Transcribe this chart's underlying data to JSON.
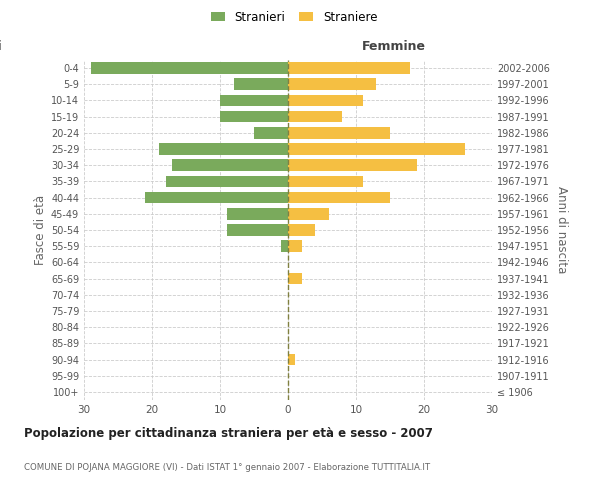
{
  "age_groups": [
    "100+",
    "95-99",
    "90-94",
    "85-89",
    "80-84",
    "75-79",
    "70-74",
    "65-69",
    "60-64",
    "55-59",
    "50-54",
    "45-49",
    "40-44",
    "35-39",
    "30-34",
    "25-29",
    "20-24",
    "15-19",
    "10-14",
    "5-9",
    "0-4"
  ],
  "birth_years": [
    "≤ 1906",
    "1907-1911",
    "1912-1916",
    "1917-1921",
    "1922-1926",
    "1927-1931",
    "1932-1936",
    "1937-1941",
    "1942-1946",
    "1947-1951",
    "1952-1956",
    "1957-1961",
    "1962-1966",
    "1967-1971",
    "1972-1976",
    "1977-1981",
    "1982-1986",
    "1987-1991",
    "1992-1996",
    "1997-2001",
    "2002-2006"
  ],
  "males": [
    0,
    0,
    0,
    0,
    0,
    0,
    0,
    0,
    0,
    1,
    9,
    9,
    21,
    18,
    17,
    19,
    5,
    10,
    10,
    8,
    29
  ],
  "females": [
    0,
    0,
    1,
    0,
    0,
    0,
    0,
    2,
    0,
    2,
    4,
    6,
    15,
    11,
    19,
    26,
    15,
    8,
    11,
    13,
    18
  ],
  "male_color": "#7aaa5c",
  "female_color": "#f5bf42",
  "center_line_color": "#808040",
  "background_color": "#ffffff",
  "grid_color": "#cccccc",
  "title": "Popolazione per cittadinanza straniera per età e sesso - 2007",
  "subtitle": "COMUNE DI POJANA MAGGIORE (VI) - Dati ISTAT 1° gennaio 2007 - Elaborazione TUTTITALIA.IT",
  "ylabel_left": "Fasce di età",
  "ylabel_right": "Anni di nascita",
  "xlabel_right": "Femmine",
  "legend_stranieri": "Stranieri",
  "legend_straniere": "Straniere",
  "xlim": 30
}
